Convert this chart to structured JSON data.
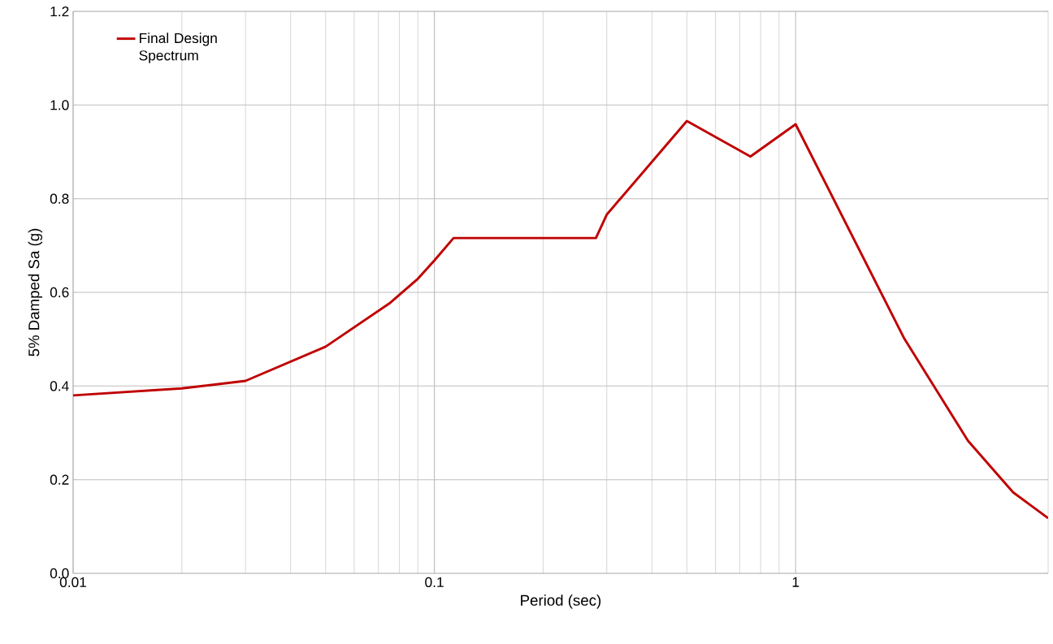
{
  "chart_data": {
    "type": "line",
    "xlabel": "Period (sec)",
    "ylabel": "5% Damped Sa (g)",
    "log": "x",
    "grid": true,
    "legend": "top left",
    "x": [
      0.01,
      0.02,
      0.03,
      0.05,
      0.075,
      0.09,
      0.1,
      0.113,
      0.28,
      0.3,
      0.5,
      0.75,
      1,
      2,
      3,
      4,
      5
    ],
    "series": [
      {
        "name": "Final Design Spectrum",
        "color": "#c00000",
        "values": [
          0.38,
          0.395,
          0.411,
          0.484,
          0.576,
          0.629,
          0.668,
          0.716,
          0.716,
          0.766,
          0.966,
          0.89,
          0.959,
          0.501,
          0.283,
          0.173,
          0.118
        ]
      }
    ],
    "xlim": [
      0.01,
      5
    ],
    "ylim": [
      0,
      1.2
    ],
    "xticks": [
      {
        "value": 0.01,
        "label": "0.01"
      },
      {
        "value": 0.1,
        "label": "0.1"
      },
      {
        "value": 1,
        "label": "1"
      }
    ],
    "yticks": [
      {
        "value": 0,
        "label": "0.0"
      },
      {
        "value": 0.2,
        "label": "0.2"
      },
      {
        "value": 0.4,
        "label": "0.4"
      },
      {
        "value": 0.6,
        "label": "0.6"
      },
      {
        "value": 0.8,
        "label": "0.8"
      },
      {
        "value": 1.0,
        "label": "1.0"
      },
      {
        "value": 1.2,
        "label": "1.2"
      }
    ]
  }
}
